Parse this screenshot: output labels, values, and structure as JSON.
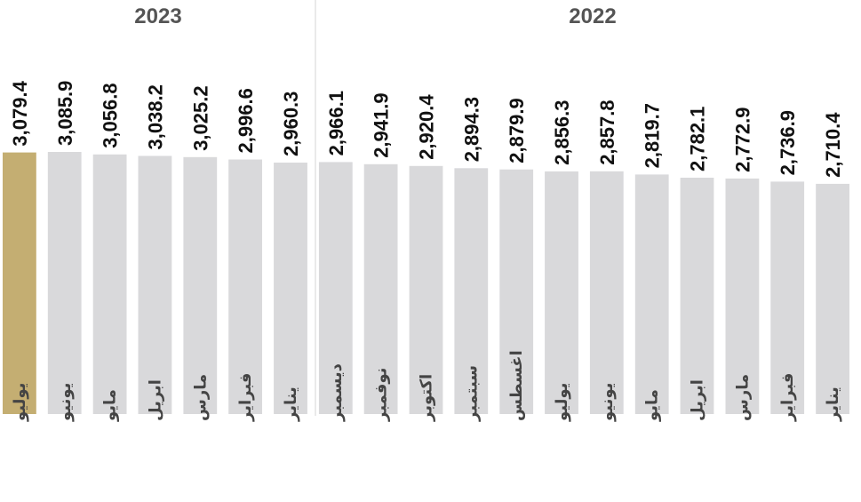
{
  "chart_data": {
    "type": "bar",
    "groups": [
      {
        "label": "2023",
        "categories": [
          "يوليو",
          "يونيو",
          "مايو",
          "ابريل",
          "مارس",
          "فبراير",
          "يناير"
        ]
      },
      {
        "label": "2022",
        "categories": [
          "ديسمبر",
          "نوفمبر",
          "اكتوبر",
          "سبتمبر",
          "اغسطس",
          "يوليو",
          "يونيو",
          "مايو",
          "ابريل",
          "مارس",
          "فبراير",
          "يناير"
        ]
      }
    ],
    "categories": [
      "يوليو",
      "يونيو",
      "مايو",
      "ابريل",
      "مارس",
      "فبراير",
      "يناير",
      "ديسمبر",
      "نوفمبر",
      "اكتوبر",
      "سبتمبر",
      "اغسطس",
      "يوليو",
      "يونيو",
      "مايو",
      "ابريل",
      "مارس",
      "فبراير",
      "يناير"
    ],
    "values": [
      3079.4,
      3085.9,
      3056.8,
      3038.2,
      3025.2,
      2996.6,
      2960.3,
      2966.1,
      2941.9,
      2920.4,
      2894.3,
      2879.9,
      2856.3,
      2857.8,
      2819.7,
      2782.1,
      2772.9,
      2736.9,
      2710.4
    ],
    "value_labels": [
      "3,079.4",
      "3,085.9",
      "3,056.8",
      "3,038.2",
      "3,025.2",
      "2,996.6",
      "2,960.3",
      "2,966.1",
      "2,941.9",
      "2,920.4",
      "2,894.3",
      "2,879.9",
      "2,856.3",
      "2,857.8",
      "2,819.7",
      "2,782.1",
      "2,772.9",
      "2,736.9",
      "2,710.4"
    ],
    "highlight_index": 0,
    "colors": {
      "highlight": "#c4ae72",
      "default": "#d9d9db",
      "divider": "#d6d6d6"
    },
    "ylim": [
      0,
      3200
    ],
    "grid": false
  }
}
